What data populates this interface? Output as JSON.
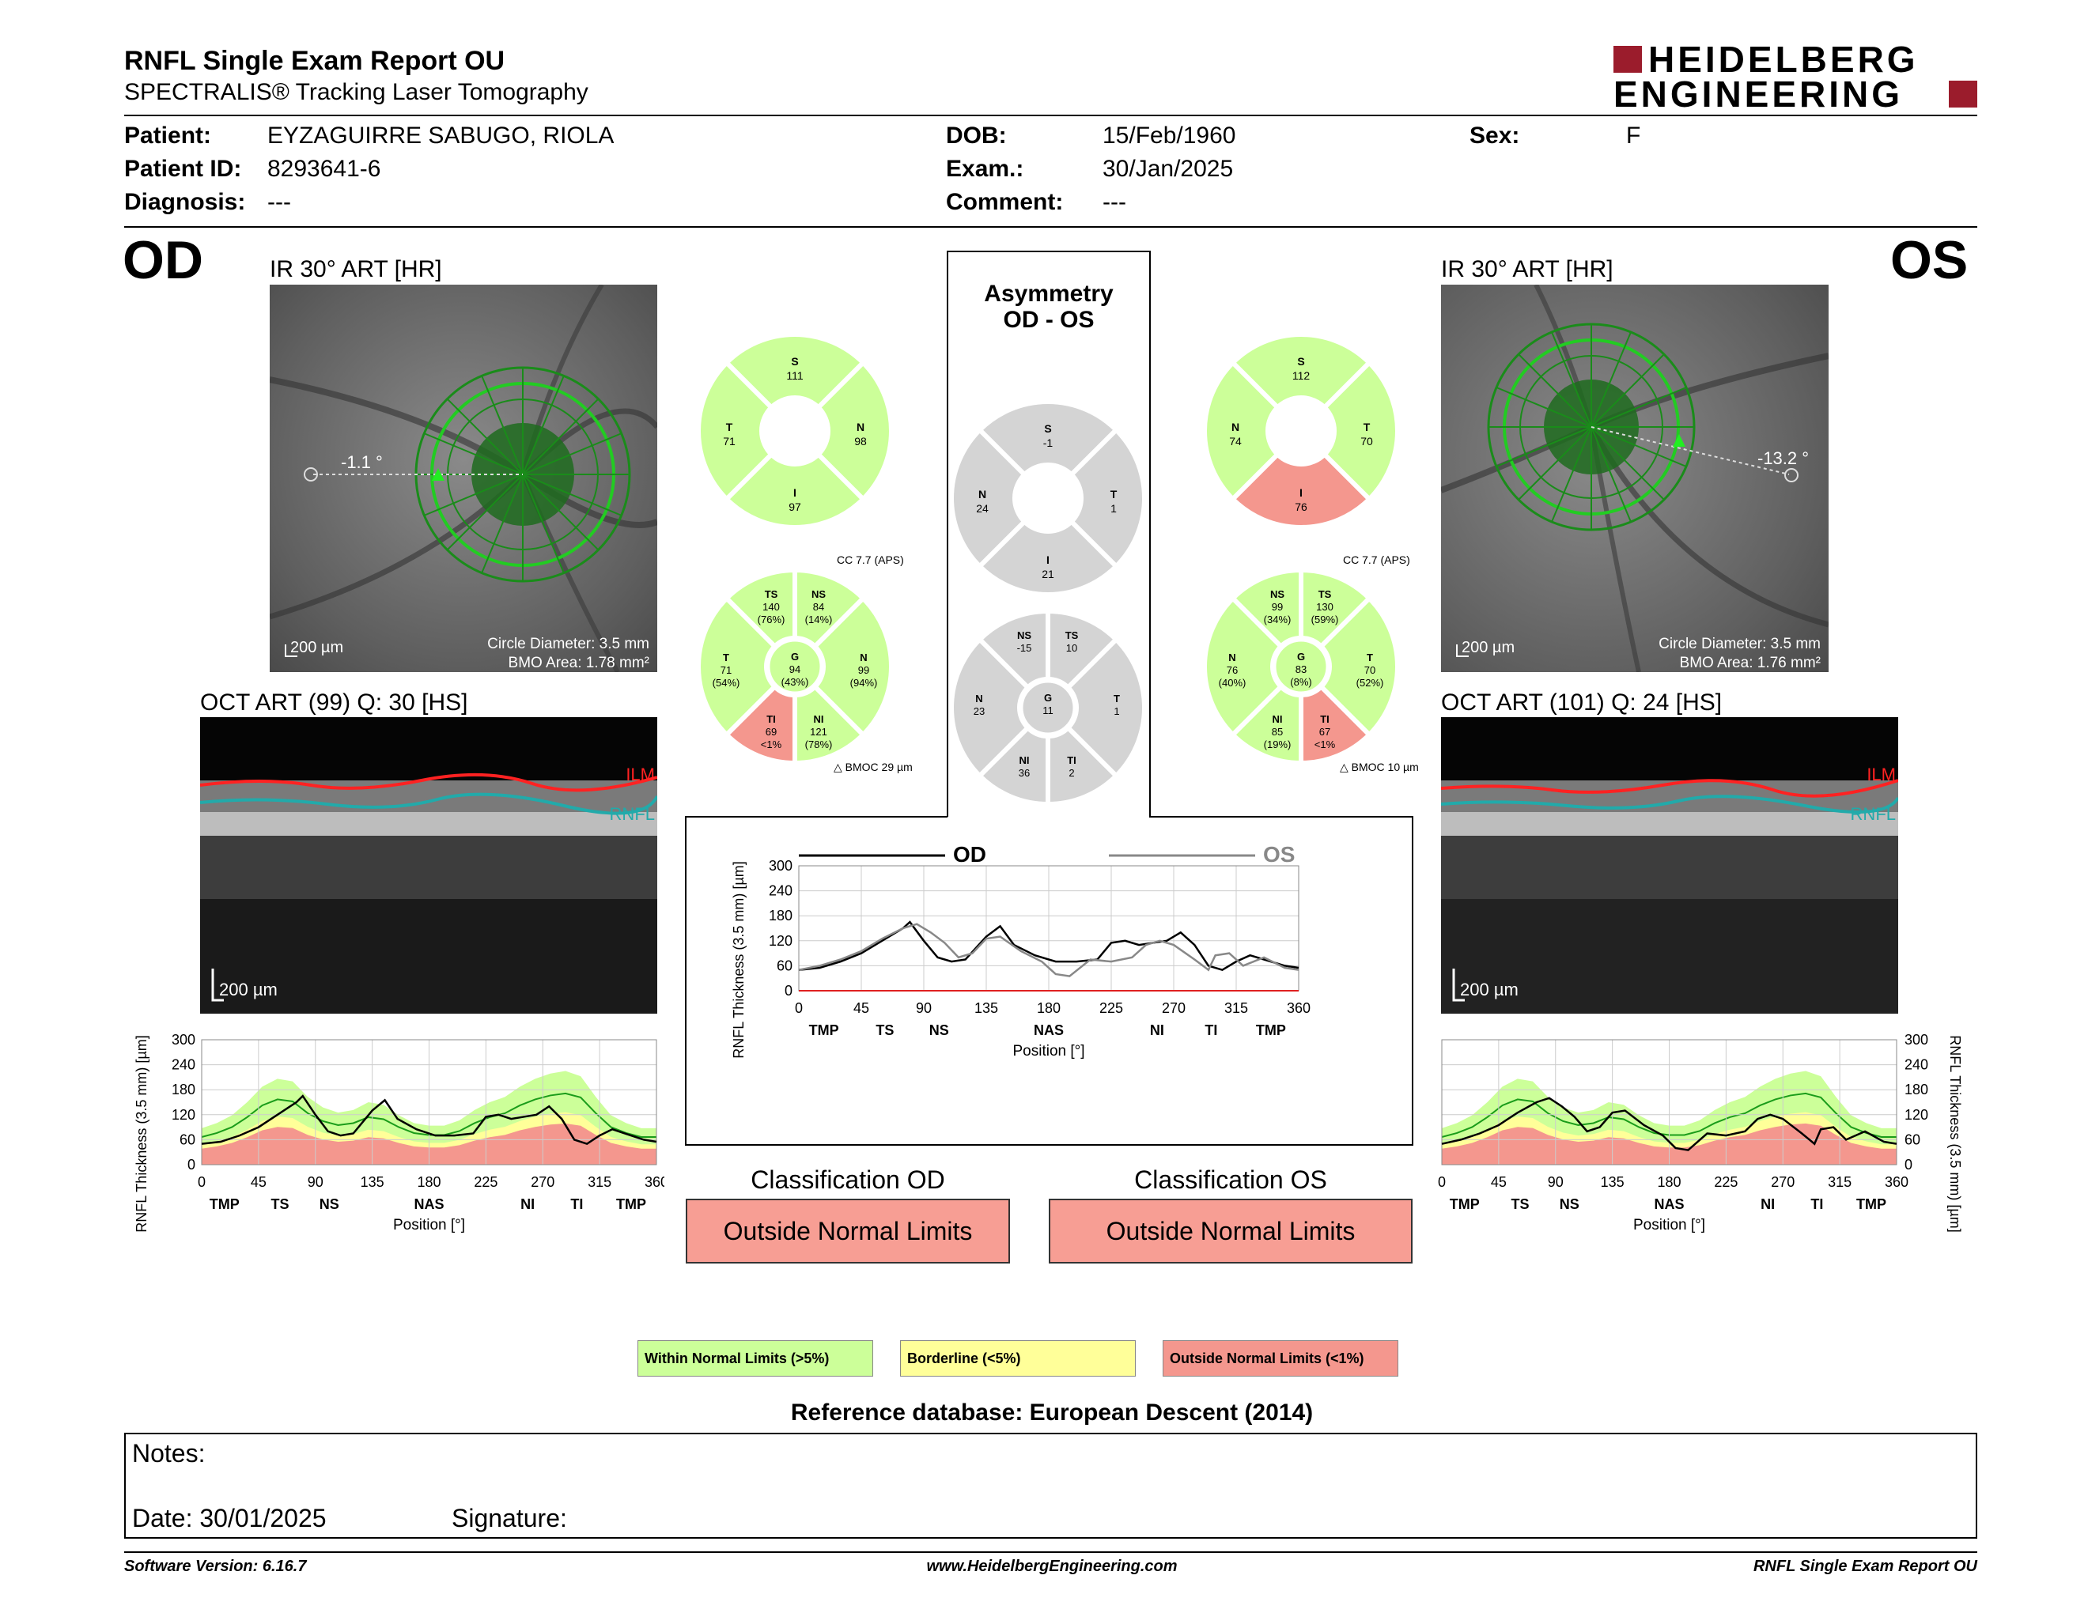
{
  "header": {
    "title": "RNFL Single Exam Report OU",
    "subtitle": "SPECTRALIS® Tracking Laser Tomography",
    "logo_line1": "HEIDELBERG",
    "logo_line2": "ENGINEERING"
  },
  "patient": {
    "patient_label": "Patient:",
    "patient_value": "EYZAGUIRRE SABUGO, RIOLA",
    "id_label": "Patient ID:",
    "id_value": "8293641-6",
    "diagnosis_label": "Diagnosis:",
    "diagnosis_value": "---",
    "dob_label": "DOB:",
    "dob_value": "15/Feb/1960",
    "exam_label": "Exam.:",
    "exam_value": "30/Jan/2025",
    "comment_label": "Comment:",
    "comment_value": "---",
    "sex_label": "Sex:",
    "sex_value": "F"
  },
  "od": {
    "eye": "OD",
    "ir_title": "IR 30° ART [HR]",
    "angle": "-1.1 °",
    "scale": "200 µm",
    "circle_diameter": "Circle Diameter: 3.5 mm",
    "bmo_area": "BMO Area: 1.78 mm²",
    "oct_title": "OCT ART (99) Q: 30 [HS]",
    "oct_scale": "200 µm",
    "ilm": "ILM",
    "rnfl": "RNFL",
    "quad": {
      "S": "111",
      "T": "71",
      "N": "98",
      "I": "97"
    },
    "sector": {
      "TS": {
        "v": "140",
        "p": "(76%)"
      },
      "NS": {
        "v": "84",
        "p": "(14%)"
      },
      "T": {
        "v": "71",
        "p": "(54%)"
      },
      "G": {
        "v": "94",
        "p": "(43%)"
      },
      "N": {
        "v": "99",
        "p": "(94%)"
      },
      "TI": {
        "v": "69",
        "p": "<1%"
      },
      "NI": {
        "v": "121",
        "p": "(78%)"
      }
    },
    "cc": "CC 7.7 (APS)",
    "bmoc": "BMOC 29 µm"
  },
  "os": {
    "eye": "OS",
    "ir_title": "IR 30° ART [HR]",
    "angle": "-13.2 °",
    "scale": "200 µm",
    "circle_diameter": "Circle Diameter: 3.5 mm",
    "bmo_area": "BMO Area: 1.76 mm²",
    "oct_title": "OCT ART (101) Q: 24 [HS]",
    "oct_scale": "200 µm",
    "ilm": "ILM",
    "rnfl": "RNFL",
    "quad": {
      "S": "112",
      "N": "74",
      "T": "70",
      "I": "76"
    },
    "sector": {
      "NS": {
        "v": "99",
        "p": "(34%)"
      },
      "TS": {
        "v": "130",
        "p": "(59%)"
      },
      "N": {
        "v": "76",
        "p": "(40%)"
      },
      "G": {
        "v": "83",
        "p": "(8%)"
      },
      "T": {
        "v": "70",
        "p": "(52%)"
      },
      "NI": {
        "v": "85",
        "p": "(19%)"
      },
      "TI": {
        "v": "67",
        "p": "<1%"
      }
    },
    "cc": "CC 7.7 (APS)",
    "bmoc": "BMOC 10 µm"
  },
  "asym": {
    "title1": "Asymmetry",
    "title2": "OD - OS",
    "quad": {
      "S": "-1",
      "N": "24",
      "T": "1",
      "I": "21"
    },
    "sector": {
      "NS": "-15",
      "TS": "10",
      "N": "23",
      "G": "11",
      "T": "1",
      "NI": "36",
      "TI": "2"
    }
  },
  "classification": {
    "od_label": "Classification OD",
    "od_value": "Outside Normal Limits",
    "os_label": "Classification OS",
    "os_value": "Outside Normal Limits"
  },
  "legend": {
    "within": "Within Normal Limits (>5%)",
    "borderline": "Borderline (<5%)",
    "outside": "Outside Normal Limits (<1%)"
  },
  "reference": "Reference database: European Descent (2014)",
  "notes": {
    "notes_label": "Notes:",
    "date_label": "Date: 30/01/2025",
    "signature_label": "Signature:"
  },
  "footer": {
    "software": "Software Version: 6.16.7",
    "website": "www.HeidelbergEngineering.com",
    "report": "RNFL Single Exam Report OU"
  },
  "colors": {
    "green": "#ccff99",
    "yellow": "#ffff99",
    "red": "#f4978e",
    "gray": "#d4d4d4"
  },
  "chart_data": [
    {
      "type": "line",
      "title": "",
      "eye": "OD",
      "xlabel": "Position [°]",
      "ylabel": "RNFL Thickness (3.5 mm) [µm]",
      "xlim": [
        0,
        360
      ],
      "ylim": [
        0,
        300
      ],
      "xticks": [
        "0",
        "45",
        "90",
        "135",
        "180",
        "225",
        "270",
        "315",
        "360"
      ],
      "yticks": [
        "0",
        "60",
        "120",
        "180",
        "240",
        "300"
      ],
      "regions": [
        "TMP",
        "TS",
        "NS",
        "NAS",
        "NI",
        "TI",
        "TMP"
      ],
      "region_pos": [
        18,
        62,
        101,
        180,
        258,
        297,
        340
      ],
      "series": [
        {
          "x": [
            0,
            15,
            30,
            45,
            60,
            75,
            80,
            90,
            100,
            110,
            120,
            135,
            145,
            155,
            170,
            185,
            200,
            215,
            225,
            235,
            245,
            255,
            265,
            275,
            285,
            295,
            305,
            315,
            325,
            340,
            350,
            360
          ],
          "values": [
            50,
            55,
            70,
            90,
            120,
            150,
            165,
            120,
            80,
            70,
            75,
            130,
            155,
            110,
            85,
            70,
            70,
            75,
            115,
            120,
            110,
            115,
            120,
            140,
            110,
            60,
            50,
            70,
            85,
            70,
            60,
            55
          ]
        }
      ]
    },
    {
      "type": "line",
      "title": "",
      "eye": "OS",
      "xlabel": "Position [°]",
      "ylabel": "RNFL Thickness (3.5 mm) [µm]",
      "xlim": [
        0,
        360
      ],
      "ylim": [
        0,
        300
      ],
      "xticks": [
        "0",
        "45",
        "90",
        "135",
        "180",
        "225",
        "270",
        "315",
        "360"
      ],
      "yticks": [
        "0",
        "60",
        "120",
        "180",
        "240",
        "300"
      ],
      "regions": [
        "TMP",
        "TS",
        "NS",
        "NAS",
        "NI",
        "TI",
        "TMP"
      ],
      "region_pos": [
        18,
        62,
        101,
        180,
        258,
        297,
        340
      ],
      "series": [
        {
          "x": [
            0,
            15,
            30,
            45,
            60,
            75,
            85,
            95,
            105,
            115,
            125,
            135,
            145,
            160,
            175,
            185,
            195,
            210,
            225,
            240,
            250,
            260,
            270,
            285,
            295,
            300,
            310,
            320,
            335,
            350,
            360
          ],
          "values": [
            50,
            60,
            75,
            95,
            125,
            150,
            160,
            140,
            115,
            80,
            90,
            125,
            130,
            95,
            70,
            40,
            35,
            75,
            70,
            80,
            110,
            120,
            110,
            75,
            50,
            85,
            90,
            60,
            80,
            55,
            50
          ]
        }
      ]
    },
    {
      "type": "line",
      "title": "",
      "xlabel": "Position [°]",
      "ylabel": "RNFL Thickness (3.5 mm) [µm]",
      "legend": [
        "OD",
        "OS"
      ],
      "xlim": [
        0,
        360
      ],
      "ylim": [
        0,
        300
      ],
      "xticks": [
        "0",
        "45",
        "90",
        "135",
        "180",
        "225",
        "270",
        "315",
        "360"
      ],
      "yticks": [
        "0",
        "60",
        "120",
        "180",
        "240",
        "300"
      ],
      "regions": [
        "TMP",
        "TS",
        "NS",
        "NAS",
        "NI",
        "TI",
        "TMP"
      ],
      "region_pos": [
        18,
        62,
        101,
        180,
        258,
        297,
        340
      ],
      "series": [
        {
          "name": "OD",
          "x": [
            0,
            15,
            30,
            45,
            60,
            75,
            80,
            90,
            100,
            110,
            120,
            135,
            145,
            155,
            170,
            185,
            200,
            215,
            225,
            235,
            245,
            255,
            265,
            275,
            285,
            295,
            305,
            315,
            325,
            340,
            350,
            360
          ],
          "values": [
            50,
            55,
            70,
            90,
            120,
            150,
            165,
            120,
            80,
            70,
            75,
            130,
            155,
            110,
            85,
            70,
            70,
            75,
            115,
            120,
            110,
            115,
            120,
            140,
            110,
            60,
            50,
            70,
            85,
            70,
            60,
            55
          ]
        },
        {
          "name": "OS",
          "x": [
            0,
            15,
            30,
            45,
            60,
            75,
            85,
            95,
            105,
            115,
            125,
            135,
            145,
            160,
            175,
            185,
            195,
            210,
            225,
            240,
            250,
            260,
            270,
            285,
            295,
            300,
            310,
            320,
            335,
            350,
            360
          ],
          "values": [
            50,
            60,
            75,
            95,
            125,
            150,
            160,
            140,
            115,
            80,
            90,
            125,
            130,
            95,
            70,
            40,
            35,
            75,
            70,
            80,
            110,
            120,
            110,
            75,
            50,
            85,
            90,
            60,
            80,
            55,
            50
          ]
        }
      ]
    }
  ]
}
